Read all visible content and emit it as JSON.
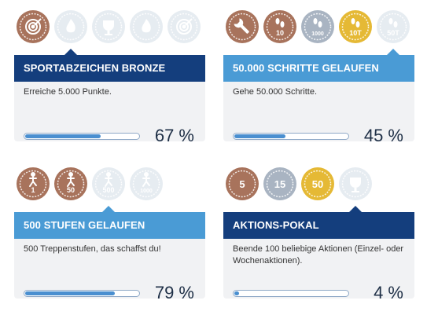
{
  "colors": {
    "dark_header": "#143e7d",
    "light_header": "#4a9bd5",
    "bronze": "#a8735c",
    "silver": "#a9b4c2",
    "gold": "#e5b935",
    "inactive": "#e6ecf1",
    "bar_fill": "#4a8fd0"
  },
  "cards": [
    {
      "title": "SPORTABZEICHEN BRONZE",
      "description": "Erreiche 5.000 Punkte.",
      "progress": 0.67,
      "percent_label": "67 %",
      "badges": [
        {
          "icon": "target-icon",
          "tier": "bronze",
          "label": ""
        },
        {
          "icon": "flame-icon",
          "tier": "inactive",
          "label": ""
        },
        {
          "icon": "trophy-icon",
          "tier": "inactive",
          "label": ""
        },
        {
          "icon": "flame-icon",
          "tier": "inactive",
          "label": ""
        },
        {
          "icon": "target-icon",
          "tier": "inactive",
          "label": ""
        }
      ]
    },
    {
      "title": "50.000 SCHRITTE GELAUFEN",
      "description": "Gehe 50.000 Schritte.",
      "progress": 0.45,
      "percent_label": "45 %",
      "badges": [
        {
          "icon": "wrench-icon",
          "tier": "bronze",
          "label": ""
        },
        {
          "icon": "footprints-icon",
          "tier": "bronze",
          "label": "10"
        },
        {
          "icon": "footprints-icon",
          "tier": "silver",
          "label": "1000"
        },
        {
          "icon": "footprints-icon",
          "tier": "gold",
          "label": "10T"
        },
        {
          "icon": "footprints-icon",
          "tier": "inactive",
          "label": "50T"
        }
      ]
    },
    {
      "title": "500 STUFEN GELAUFEN",
      "description": "500 Treppenstufen, das schaffst du!",
      "progress": 0.79,
      "percent_label": "79 %",
      "badges": [
        {
          "icon": "stairs-icon",
          "tier": "bronze",
          "label": "1"
        },
        {
          "icon": "stairs-icon",
          "tier": "bronze",
          "label": "50"
        },
        {
          "icon": "stairs-icon",
          "tier": "inactive",
          "label": "500"
        },
        {
          "icon": "stairs-icon",
          "tier": "inactive",
          "label": "1000"
        }
      ]
    },
    {
      "title": "AKTIONS-POKAL",
      "description": "Beende 100 beliebige Aktionen (Einzel- oder Wochenaktionen).",
      "progress": 0.04,
      "percent_label": "4 %",
      "badges": [
        {
          "icon": "number-badge-icon",
          "tier": "bronze",
          "label": "5"
        },
        {
          "icon": "number-badge-icon",
          "tier": "silver",
          "label": "15"
        },
        {
          "icon": "number-badge-icon",
          "tier": "gold",
          "label": "50"
        },
        {
          "icon": "trophy-icon",
          "tier": "inactive",
          "label": ""
        }
      ]
    }
  ]
}
